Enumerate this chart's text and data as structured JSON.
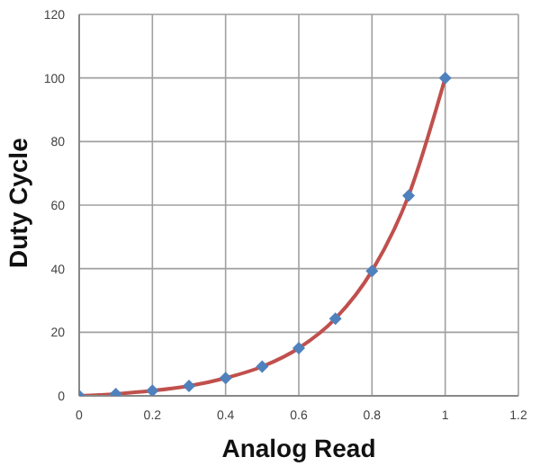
{
  "chart_data": {
    "type": "scatter",
    "xlabel": "Analog Read",
    "ylabel": "Duty Cycle",
    "x": [
      0,
      0.1,
      0.2,
      0.3,
      0.4,
      0.5,
      0.6,
      0.7,
      0.8,
      0.9,
      1.0
    ],
    "series": [
      {
        "type": "line",
        "color": "#c0504d",
        "marker": "none",
        "values": [
          0,
          0.6,
          1.6,
          3.1,
          5.6,
          9.2,
          15,
          24.3,
          39.3,
          63,
          100
        ]
      },
      {
        "color": "#4f81bd",
        "marker": "diamond",
        "values": [
          0,
          0.6,
          1.6,
          3.1,
          5.6,
          9.2,
          15,
          24.3,
          39.3,
          63,
          100
        ]
      }
    ],
    "xlim": [
      0,
      1.2
    ],
    "xticks": [
      0,
      0.2,
      0.4,
      0.6,
      0.8,
      1,
      1.2
    ],
    "ylim": [
      0,
      120
    ],
    "yticks": [
      0,
      20,
      40,
      60,
      80,
      100,
      120
    ],
    "grid": true
  }
}
